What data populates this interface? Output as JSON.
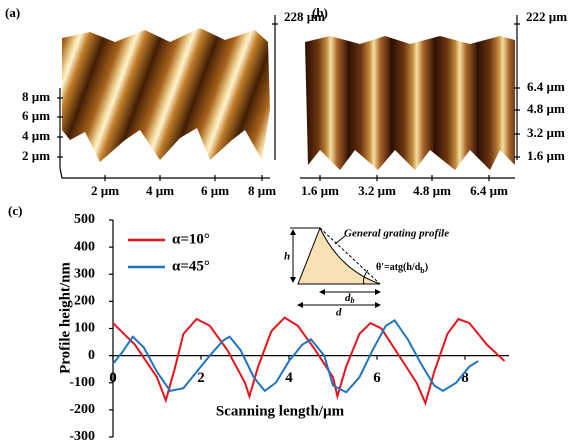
{
  "panels": [
    {
      "label": "(a)",
      "z_label": "228 µm",
      "y_labels": [
        "8 µm",
        "6 µm",
        "4 µm",
        "2 µm"
      ],
      "x_labels": [
        "2 µm",
        "4 µm",
        "6 µm",
        "8 µm"
      ]
    },
    {
      "label": "(b)",
      "z_label": "222 µm",
      "y_labels": [
        "6.4 µm",
        "4.8 µm",
        "3.2 µm",
        "1.6 µm"
      ],
      "x_labels": [
        "1.6 µm",
        "3.2 µm",
        "4.8 µm",
        "6.4 µm"
      ]
    }
  ],
  "chart_data": {
    "type": "line",
    "label": "(c)",
    "xlabel": "Scanning length/µm",
    "ylabel": "Profile height/nm",
    "xlim": [
      0,
      9
    ],
    "ylim": [
      -300,
      500
    ],
    "xticks": [
      0,
      2,
      4,
      6,
      8
    ],
    "yticks": [
      -300,
      -200,
      -100,
      0,
      100,
      200,
      300,
      400,
      500
    ],
    "series": [
      {
        "name": "α=10°",
        "color": "#e5141c",
        "x": [
          0,
          0.5,
          1.0,
          1.2,
          1.4,
          1.6,
          1.9,
          2.2,
          2.6,
          3.0,
          3.1,
          3.3,
          3.6,
          3.9,
          4.2,
          4.6,
          5.0,
          5.1,
          5.3,
          5.6,
          5.85,
          6.1,
          6.5,
          6.9,
          7.1,
          7.3,
          7.6,
          7.85,
          8.1,
          8.5,
          8.9
        ],
        "values": [
          120,
          40,
          -80,
          -165,
          -50,
          80,
          135,
          110,
          20,
          -100,
          -150,
          -40,
          90,
          140,
          110,
          20,
          -80,
          -150,
          -40,
          80,
          120,
          100,
          0,
          -100,
          -175,
          -60,
          80,
          135,
          120,
          40,
          -20
        ]
      },
      {
        "name": "α=45°",
        "color": "#1f74bf",
        "x": [
          0,
          0.2,
          0.45,
          0.7,
          1.0,
          1.3,
          1.6,
          1.9,
          2.2,
          2.5,
          2.65,
          2.9,
          3.2,
          3.45,
          3.7,
          4.0,
          4.3,
          4.5,
          4.8,
          5.0,
          5.3,
          5.6,
          5.9,
          6.2,
          6.4,
          6.7,
          7.0,
          7.3,
          7.5,
          7.8,
          8.1,
          8.3
        ],
        "values": [
          -30,
          10,
          70,
          30,
          -60,
          -130,
          -120,
          -60,
          0,
          55,
          70,
          20,
          -80,
          -130,
          -100,
          -20,
          40,
          60,
          0,
          -110,
          -135,
          -80,
          20,
          110,
          130,
          60,
          -30,
          -110,
          -130,
          -100,
          -40,
          -20
        ]
      }
    ],
    "inset": {
      "title": "General grating profile",
      "h": "h",
      "angle": [
        "θ'=atg(h/d",
        "b",
        ")"
      ],
      "db": [
        "d",
        "b"
      ],
      "d": "d"
    }
  }
}
